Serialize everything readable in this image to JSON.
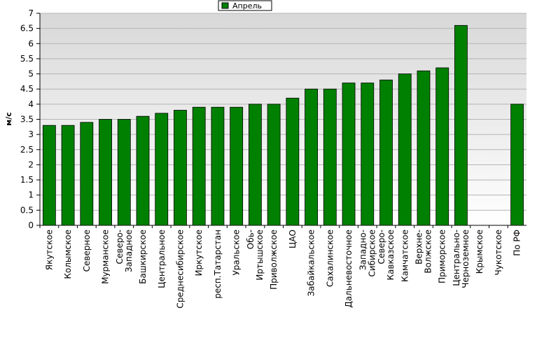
{
  "chart_data": {
    "type": "bar",
    "y_label": "м/с",
    "categories": [
      "Якутское",
      "Колымское",
      "Северное",
      "Мурманское",
      "Северо-\nЗападное",
      "Башкирское",
      "Центральное",
      "Среднесибирское",
      "Иркутское",
      "респ.Татарстан",
      "Уральское",
      "Обь-\nИртышское",
      "Приволжское",
      "ЦАО",
      "Забайкальское",
      "Сахалинское",
      "Дальневосточное",
      "Западно-\nСибирское",
      "Северо-\nКавказское",
      "Камчатское",
      "Верхне-\nВолжское",
      "Приморское",
      "Центрально-\nЧерноземное",
      "Крымское",
      "Чукотское",
      "По РФ"
    ],
    "series": [
      {
        "name": "Апрель",
        "color": "#008000",
        "values": [
          3.3,
          3.3,
          3.4,
          3.5,
          3.5,
          3.6,
          3.7,
          3.8,
          3.9,
          3.9,
          3.9,
          4.0,
          4.0,
          4.2,
          4.5,
          4.5,
          4.7,
          4.7,
          4.8,
          5.0,
          5.1,
          5.2,
          6.6,
          null,
          null,
          4.0
        ]
      }
    ],
    "ylim": [
      0,
      7
    ],
    "yticks": [
      0,
      0.5,
      1,
      1.5,
      2,
      2.5,
      3,
      3.5,
      4,
      4.5,
      5,
      5.5,
      6,
      6.5,
      7
    ],
    "grid": true,
    "legend": "top"
  }
}
